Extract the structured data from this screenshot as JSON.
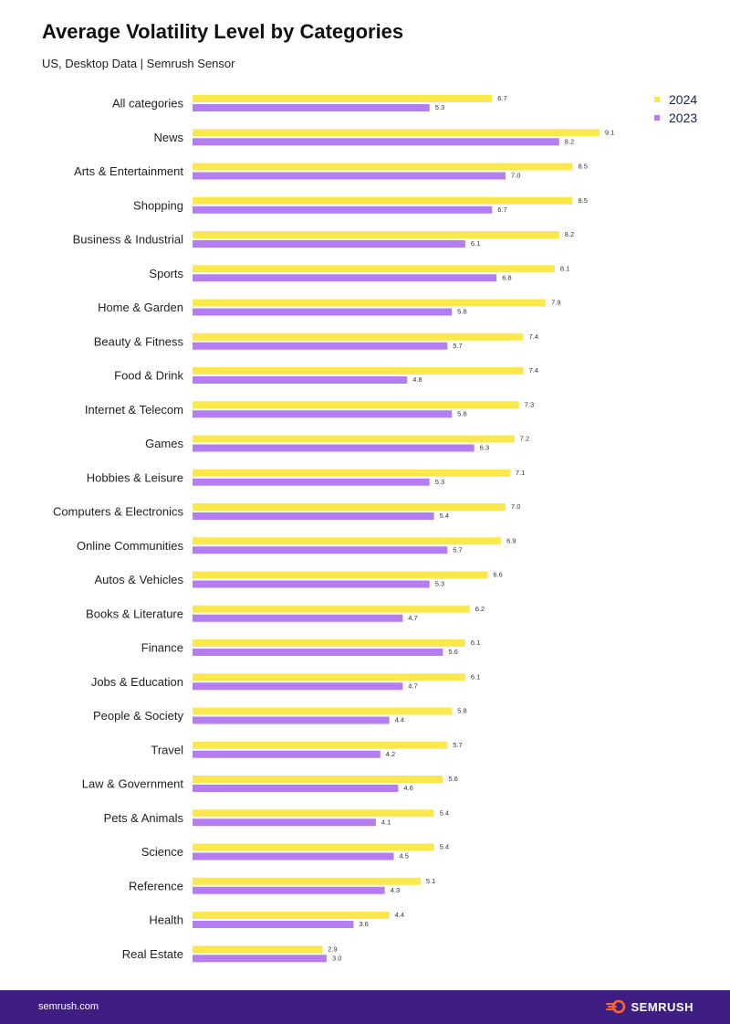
{
  "header": {
    "title": "Average Volatility Level by Categories",
    "subtitle": "US, Desktop Data | Semrush Sensor"
  },
  "colors": {
    "series_2024": "#fbe84d",
    "series_2023": "#b57df2",
    "footer_bg": "#3f1e83",
    "logo_orange": "#ff642d"
  },
  "chart_data": {
    "type": "bar",
    "orientation": "horizontal",
    "title": "Average Volatility Level by Categories",
    "subtitle": "US, Desktop Data | Semrush Sensor",
    "xlim": [
      0,
      10
    ],
    "grid": false,
    "legend_position": "top-right",
    "categories": [
      "All categories",
      "News",
      "Arts & Entertainment",
      "Shopping",
      "Business & Industrial",
      "Sports",
      "Home & Garden",
      "Beauty & Fitness",
      "Food & Drink",
      "Internet & Telecom",
      "Games",
      "Hobbies & Leisure",
      "Computers & Electronics",
      "Online Communities",
      "Autos & Vehicles",
      "Books & Literature",
      "Finance",
      "Jobs & Education",
      "People & Society",
      "Travel",
      "Law & Government",
      "Pets & Animals",
      "Science",
      "Reference",
      "Health",
      "Real Estate"
    ],
    "series": [
      {
        "name": "2024",
        "values": [
          6.7,
          9.1,
          8.5,
          8.5,
          8.2,
          8.1,
          7.9,
          7.4,
          7.4,
          7.3,
          7.2,
          7.1,
          7.0,
          6.9,
          6.6,
          6.2,
          6.1,
          6.1,
          5.8,
          5.7,
          5.6,
          5.4,
          5.4,
          5.1,
          4.4,
          2.9
        ]
      },
      {
        "name": "2023",
        "values": [
          5.3,
          8.2,
          7.0,
          6.7,
          6.1,
          6.8,
          5.8,
          5.7,
          4.8,
          5.8,
          6.3,
          5.3,
          5.4,
          5.7,
          5.3,
          4.7,
          5.6,
          4.7,
          4.4,
          4.2,
          4.6,
          4.1,
          4.5,
          4.3,
          3.6,
          3.0
        ]
      }
    ]
  },
  "footer": {
    "url": "semrush.com",
    "brand": "SEMRUSH"
  }
}
